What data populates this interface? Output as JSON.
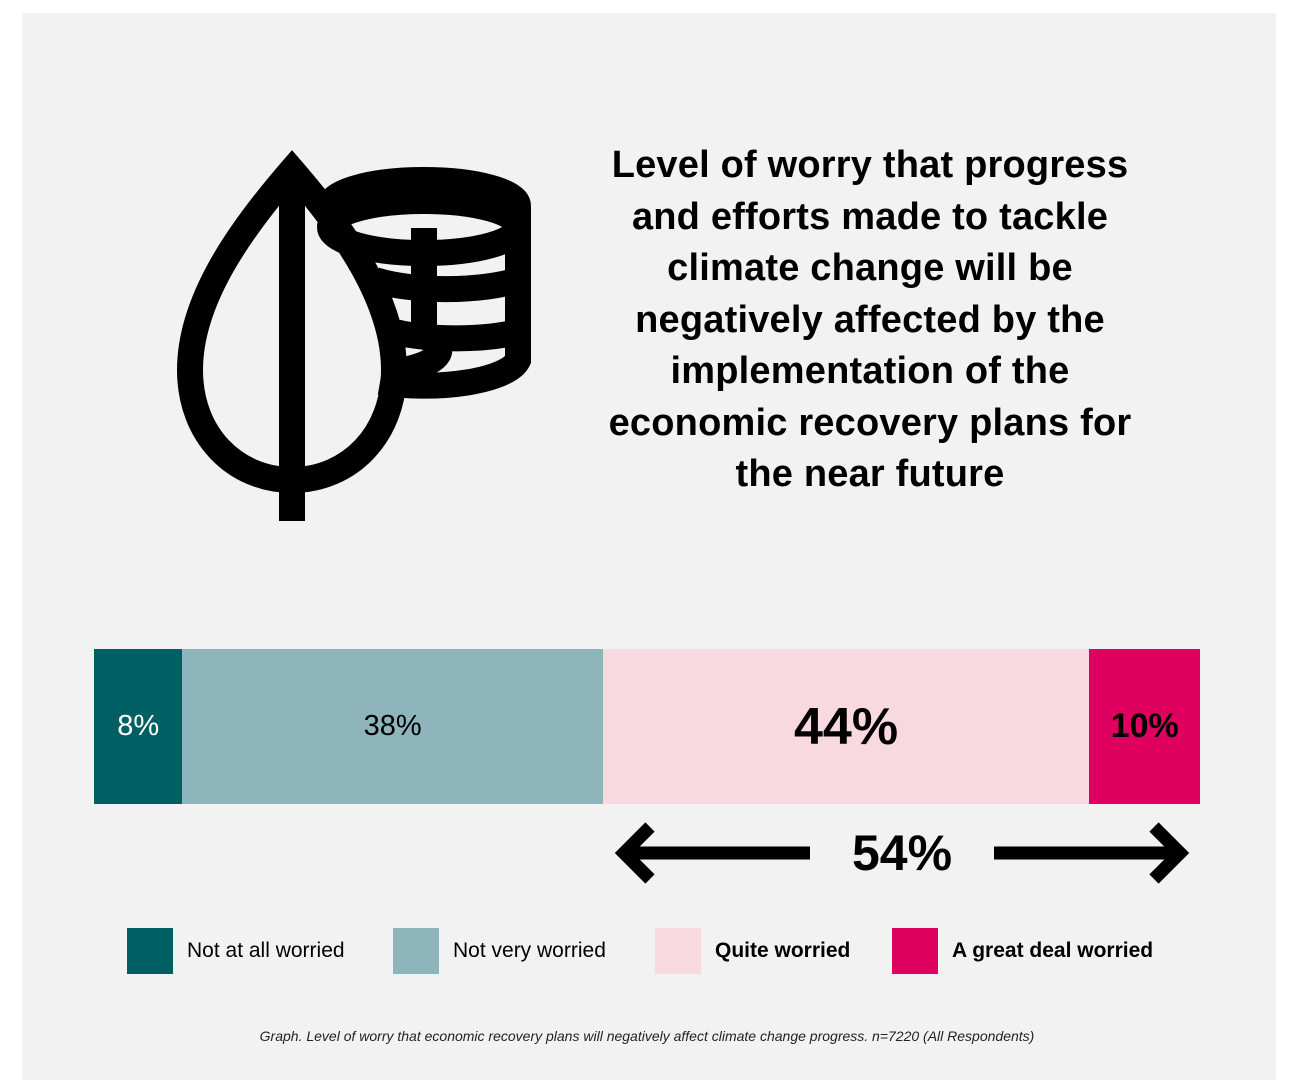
{
  "colors": {
    "not_at_all": "#005f63",
    "not_very": "#8fb5bc",
    "quite": "#f8d9e0",
    "great_deal": "#e0005f",
    "background": "#f2f2f2"
  },
  "icon": "leaf-and-coins-icon",
  "chart_data": {
    "type": "bar",
    "orientation": "horizontal-stacked",
    "title": "Level of worry that progress and efforts made to tackle climate change will be negatively affected by the implementation of the economic recovery plans for the near future",
    "categories": [
      "Not at all worried",
      "Not very worried",
      "Quite worried",
      "A great deal worried"
    ],
    "values": [
      8,
      38,
      44,
      10
    ],
    "labels": [
      "8%",
      "38%",
      "44%",
      "10%"
    ],
    "xlim": [
      0,
      100
    ],
    "grid": false,
    "legend_position": "bottom",
    "combined": {
      "label": "54%",
      "value": 54,
      "covers": [
        "Quite worried",
        "A great deal worried"
      ]
    },
    "caption": "Graph. Level of worry that economic recovery plans will negatively affect climate change progress. n=7220 (All Respondents)"
  }
}
